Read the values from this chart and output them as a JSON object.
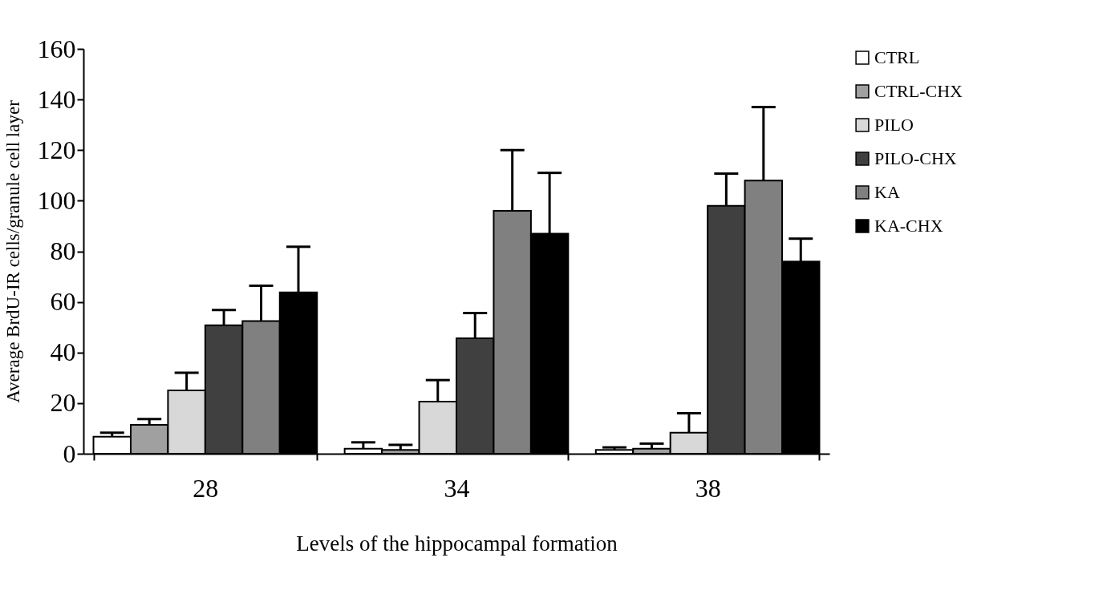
{
  "chart_data": {
    "type": "bar",
    "xlabel": "Levels of the hippocampal formation",
    "ylabel": "Average BrdU-IR cells/granule cell layer",
    "categories": [
      "28",
      "34",
      "38"
    ],
    "series": [
      {
        "name": "CTRL",
        "color": "#ffffff",
        "values": [
          6.7,
          2,
          1.5
        ],
        "errors": [
          1.6,
          2.5,
          1
        ]
      },
      {
        "name": "CTRL-CHX",
        "color": "#a0a0a0",
        "values": [
          11.4,
          1.5,
          2
        ],
        "errors": [
          2.3,
          2,
          2
        ]
      },
      {
        "name": "PILO",
        "color": "#d8d8d8",
        "values": [
          25,
          20.6,
          8.3
        ],
        "errors": [
          7,
          8.5,
          7.7
        ]
      },
      {
        "name": "PILO-CHX",
        "color": "#404040",
        "values": [
          50.8,
          45.6,
          98
        ],
        "errors": [
          6,
          10,
          12.7
        ]
      },
      {
        "name": "KA",
        "color": "#808080",
        "values": [
          52.4,
          96,
          108
        ],
        "errors": [
          14,
          24,
          29
        ]
      },
      {
        "name": "KA-CHX",
        "color": "#000000",
        "values": [
          63.8,
          87,
          76
        ],
        "errors": [
          18,
          24,
          9
        ]
      }
    ],
    "ylim": [
      0,
      160
    ],
    "yticks": [
      0,
      20,
      40,
      60,
      80,
      100,
      120,
      140,
      160
    ],
    "legend": "right",
    "grid": false
  }
}
